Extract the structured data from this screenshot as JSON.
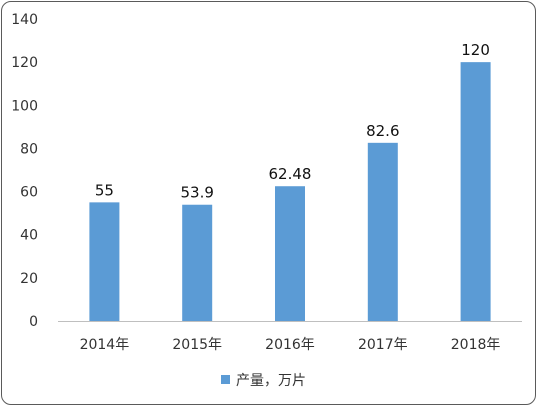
{
  "chart_data": {
    "type": "bar",
    "categories": [
      "2014年",
      "2015年",
      "2016年",
      "2017年",
      "2018年"
    ],
    "series": [
      {
        "name": "产量，万片",
        "values": [
          55,
          53.9,
          62.48,
          82.6,
          120
        ],
        "color": "#5b9bd5"
      }
    ],
    "data_labels": [
      "55",
      "53.9",
      "62.48",
      "82.6",
      "120"
    ],
    "y_ticks": [
      "0",
      "20",
      "40",
      "60",
      "80",
      "100",
      "120",
      "140"
    ],
    "ylim": [
      0,
      140
    ],
    "grid": false,
    "legend_position": "bottom"
  }
}
